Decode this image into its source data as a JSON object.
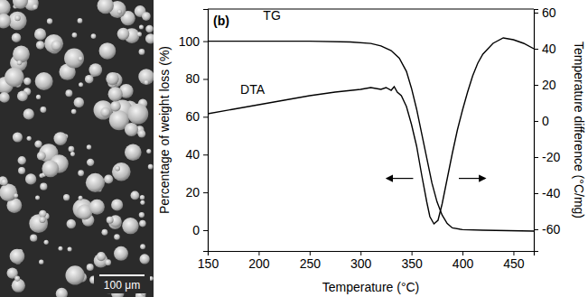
{
  "chart_data": {
    "type": "line",
    "title": "(b)",
    "xlabel": "Temperature (°C)",
    "ylabel": "Percentage of weight loss (%)",
    "y2label": "Temperature difference (°C/mg)",
    "xlim": [
      150,
      470
    ],
    "xticks": [
      150,
      200,
      250,
      300,
      350,
      400,
      450
    ],
    "ylim": [
      -11,
      117
    ],
    "yticks": [
      0,
      20,
      40,
      60,
      80,
      100
    ],
    "y2lim": [
      -72,
      62
    ],
    "y2ticks": [
      -60,
      -40,
      -20,
      0,
      20,
      40,
      60
    ],
    "grid": false,
    "series": [
      {
        "name": "TG",
        "color": "#000000",
        "x": [
          150,
          250,
          290,
          310,
          320,
          330,
          338,
          345,
          350,
          355,
          360,
          365,
          370,
          375,
          380,
          385,
          390,
          400,
          420,
          470
        ],
        "values": [
          100,
          100,
          99.6,
          98.8,
          97.5,
          95,
          91,
          84,
          75,
          64,
          51,
          38,
          25,
          15,
          8,
          3.5,
          1.2,
          0.3,
          0,
          -0.5
        ]
      },
      {
        "name": "DTA",
        "color": "#000000",
        "axis": "y2",
        "x": [
          150,
          175,
          200,
          225,
          250,
          275,
          300,
          310,
          320,
          325,
          330,
          333,
          336,
          340,
          345,
          350,
          355,
          360,
          365,
          368,
          372,
          376,
          380,
          385,
          390,
          395,
          400,
          405,
          410,
          415,
          420,
          430,
          440,
          450,
          460,
          470
        ],
        "values": [
          4,
          6.5,
          9,
          11.5,
          14,
          16,
          17.5,
          18.5,
          17.5,
          18.5,
          17,
          19,
          16,
          14,
          8,
          -2,
          -14,
          -30,
          -45,
          -53,
          -57,
          -55,
          -46,
          -32,
          -18,
          -5,
          6,
          16,
          25,
          32,
          37,
          43,
          46,
          45,
          43,
          40
        ]
      }
    ]
  },
  "micrograph": {
    "scale_bar": "100 μm"
  }
}
